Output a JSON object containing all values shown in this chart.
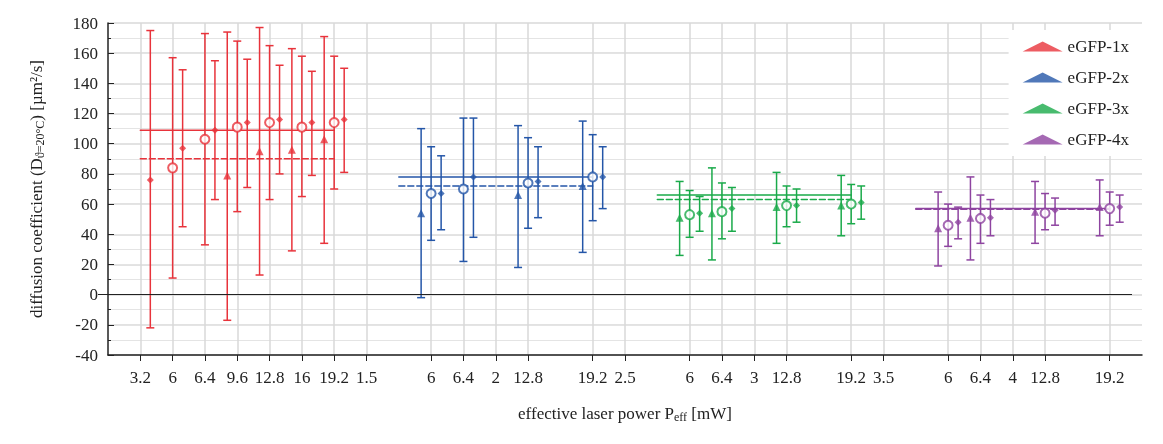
{
  "chart_data": {
    "type": "scatter",
    "xlabel": "effective laser power P$_{eff}$ [mW]",
    "ylabel": "diffusion coefficient (D$_{ϑ=20°C}$) [µm²/s]",
    "categories": [
      null,
      "3.2",
      "6",
      "6.4",
      "9.6",
      "12.8",
      "16",
      "19.2",
      "1.5",
      null,
      "6",
      "6.4",
      "2",
      "12.8",
      null,
      "19.2",
      "2.5",
      null,
      "6",
      "6.4",
      "3",
      "12.8",
      null,
      "19.2",
      "3.5",
      null,
      "6",
      "6.4",
      "4",
      "12.8",
      null,
      "19.2"
    ],
    "ylim": [
      -40,
      180
    ],
    "yticks": [
      -40,
      -20,
      0,
      20,
      40,
      60,
      80,
      100,
      120,
      140,
      160,
      180
    ],
    "grid": true,
    "legend": "top right",
    "ref_lines": [
      {
        "axis": "y",
        "value": 0,
        "color": "#222222"
      }
    ],
    "series": [
      {
        "name": "eGFP-1x",
        "color": "#e8333b",
        "marker": "triangle",
        "values": [
          null,
          null,
          null,
          null,
          79,
          95,
          96,
          103,
          null,
          null,
          null,
          null,
          null,
          null,
          null,
          null,
          null,
          null,
          null,
          null,
          null,
          null,
          null,
          null,
          null,
          null,
          null,
          null,
          null,
          null,
          null,
          null
        ],
        "errors": [
          null,
          null,
          null,
          null,
          [
            -17,
            174
          ],
          [
            13,
            177
          ],
          [
            29,
            163
          ],
          [
            34,
            171
          ],
          null,
          null,
          null,
          null,
          null,
          null,
          null,
          null,
          null,
          null,
          null,
          null,
          null,
          null,
          null,
          null,
          null,
          null,
          null,
          null,
          null,
          null,
          null,
          null
        ]
      },
      {
        "color": "#e8333b",
        "marker": "circle",
        "values": [
          null,
          null,
          84,
          103,
          111,
          114,
          111,
          114,
          null,
          null,
          null,
          null,
          null,
          null,
          null,
          null,
          null,
          null,
          null,
          null,
          null,
          null,
          null,
          null,
          null,
          null,
          null,
          null,
          null,
          null,
          null,
          null
        ],
        "errors": [
          null,
          null,
          [
            11,
            157
          ],
          [
            33,
            173
          ],
          [
            55,
            168
          ],
          [
            63,
            165
          ],
          [
            65,
            158
          ],
          [
            70,
            158
          ],
          null,
          null,
          null,
          null,
          null,
          null,
          null,
          null,
          null,
          null,
          null,
          null,
          null,
          null,
          null,
          null,
          null,
          null,
          null,
          null,
          null,
          null,
          null,
          null
        ]
      },
      {
        "color": "#e8333b",
        "marker": "diamond",
        "values": [
          null,
          76,
          97,
          109,
          114,
          116,
          114,
          116,
          null,
          null,
          null,
          null,
          null,
          null,
          null,
          null,
          null,
          null,
          null,
          null,
          null,
          null,
          null,
          null,
          null,
          null,
          null,
          null,
          null,
          null,
          null,
          null
        ],
        "errors": [
          null,
          [
            -22,
            175
          ],
          [
            45,
            149
          ],
          [
            63,
            155
          ],
          [
            71,
            156
          ],
          [
            80,
            152
          ],
          [
            79,
            148
          ],
          [
            81,
            150
          ],
          null,
          null,
          null,
          null,
          null,
          null,
          null,
          null,
          null,
          null,
          null,
          null,
          null,
          null,
          null,
          null,
          null,
          null,
          null,
          null,
          null,
          null,
          null,
          null
        ]
      },
      {
        "type": "line",
        "color": "#e8333b",
        "marker": "none",
        "line_style": "solid",
        "values": [
          null,
          109,
          109,
          109,
          109,
          109,
          109,
          109,
          null,
          null,
          null,
          null,
          null,
          null,
          null,
          null,
          null,
          null,
          null,
          null,
          null,
          null,
          null,
          null,
          null,
          null,
          null,
          null,
          null,
          null,
          null,
          null
        ]
      },
      {
        "type": "line",
        "color": "#e8333b",
        "marker": "none",
        "line_style": "dashed",
        "values": [
          null,
          90,
          90,
          90,
          90,
          90,
          90,
          90,
          null,
          null,
          null,
          null,
          null,
          null,
          null,
          null,
          null,
          null,
          null,
          null,
          null,
          null,
          null,
          null,
          null,
          null,
          null,
          null,
          null,
          null,
          null,
          null
        ]
      },
      {
        "name": "eGFP-2x",
        "color": "#2456a8",
        "marker": "triangle",
        "values": [
          null,
          null,
          null,
          null,
          null,
          null,
          null,
          null,
          null,
          null,
          54,
          null,
          null,
          66,
          null,
          72,
          null,
          null,
          null,
          null,
          null,
          null,
          null,
          null,
          null,
          null,
          null,
          null,
          null,
          null,
          null,
          null
        ],
        "errors": [
          null,
          null,
          null,
          null,
          null,
          null,
          null,
          null,
          null,
          null,
          [
            -2,
            110
          ],
          null,
          null,
          [
            18,
            112
          ],
          null,
          [
            28,
            115
          ],
          null,
          null,
          null,
          null,
          null,
          null,
          null,
          null,
          null,
          null,
          null,
          null,
          null,
          null,
          null,
          null
        ]
      },
      {
        "color": "#2456a8",
        "marker": "circle",
        "values": [
          null,
          null,
          null,
          null,
          null,
          null,
          null,
          null,
          null,
          null,
          67,
          70,
          null,
          74,
          null,
          78,
          null,
          null,
          null,
          null,
          null,
          null,
          null,
          null,
          null,
          null,
          null,
          null,
          null,
          null,
          null,
          null
        ],
        "errors": [
          null,
          null,
          null,
          null,
          null,
          null,
          null,
          null,
          null,
          null,
          [
            36,
            98
          ],
          [
            22,
            117
          ],
          null,
          [
            44,
            104
          ],
          null,
          [
            49,
            106
          ],
          null,
          null,
          null,
          null,
          null,
          null,
          null,
          null,
          null,
          null,
          null,
          null,
          null,
          null,
          null,
          null
        ]
      },
      {
        "color": "#2456a8",
        "marker": "diamond",
        "values": [
          null,
          null,
          null,
          null,
          null,
          null,
          null,
          null,
          null,
          null,
          67,
          78,
          null,
          75,
          null,
          78,
          null,
          null,
          null,
          null,
          null,
          null,
          null,
          null,
          null,
          null,
          null,
          null,
          null,
          null,
          null,
          null
        ],
        "errors": [
          null,
          null,
          null,
          null,
          null,
          null,
          null,
          null,
          null,
          null,
          [
            43,
            92
          ],
          [
            38,
            117
          ],
          null,
          [
            51,
            98
          ],
          null,
          [
            57,
            98
          ],
          null,
          null,
          null,
          null,
          null,
          null,
          null,
          null,
          null,
          null,
          null,
          null,
          null,
          null,
          null,
          null
        ]
      },
      {
        "type": "line",
        "color": "#2456a8",
        "marker": "none",
        "line_style": "solid",
        "values": [
          null,
          null,
          null,
          null,
          null,
          null,
          null,
          null,
          null,
          78,
          78,
          78,
          78,
          78,
          78,
          78,
          null,
          null,
          null,
          null,
          null,
          null,
          null,
          null,
          null,
          null,
          null,
          null,
          null,
          null,
          null,
          null
        ]
      },
      {
        "type": "line",
        "color": "#2456a8",
        "marker": "none",
        "line_style": "dashed",
        "values": [
          null,
          null,
          null,
          null,
          null,
          null,
          null,
          null,
          null,
          72,
          72,
          72,
          72,
          72,
          72,
          72,
          null,
          null,
          null,
          null,
          null,
          null,
          null,
          null,
          null,
          null,
          null,
          null,
          null,
          null,
          null,
          null
        ]
      },
      {
        "name": "eGFP-3x",
        "color": "#1aaa4a",
        "marker": "triangle",
        "values": [
          null,
          null,
          null,
          null,
          null,
          null,
          null,
          null,
          null,
          null,
          null,
          null,
          null,
          null,
          null,
          null,
          null,
          null,
          51,
          54,
          null,
          58,
          null,
          59,
          null,
          null,
          null,
          null,
          null,
          null,
          null,
          null
        ],
        "errors": [
          null,
          null,
          null,
          null,
          null,
          null,
          null,
          null,
          null,
          null,
          null,
          null,
          null,
          null,
          null,
          null,
          null,
          null,
          [
            26,
            75
          ],
          [
            23,
            84
          ],
          null,
          [
            34,
            81
          ],
          null,
          [
            39,
            79
          ],
          null,
          null,
          null,
          null,
          null,
          null,
          null,
          null
        ]
      },
      {
        "color": "#1aaa4a",
        "marker": "circle",
        "values": [
          null,
          null,
          null,
          null,
          null,
          null,
          null,
          null,
          null,
          null,
          null,
          null,
          null,
          null,
          null,
          null,
          null,
          null,
          53,
          55,
          null,
          59,
          null,
          60,
          null,
          null,
          null,
          null,
          null,
          null,
          null,
          null
        ],
        "errors": [
          null,
          null,
          null,
          null,
          null,
          null,
          null,
          null,
          null,
          null,
          null,
          null,
          null,
          null,
          null,
          null,
          null,
          null,
          [
            38,
            69
          ],
          [
            37,
            74
          ],
          null,
          [
            45,
            72
          ],
          null,
          [
            47,
            73
          ],
          null,
          null,
          null,
          null,
          null,
          null,
          null,
          null
        ]
      },
      {
        "color": "#1aaa4a",
        "marker": "diamond",
        "values": [
          null,
          null,
          null,
          null,
          null,
          null,
          null,
          null,
          null,
          null,
          null,
          null,
          null,
          null,
          null,
          null,
          null,
          null,
          54,
          57,
          null,
          59,
          null,
          61,
          null,
          null,
          null,
          null,
          null,
          null,
          null,
          null
        ],
        "errors": [
          null,
          null,
          null,
          null,
          null,
          null,
          null,
          null,
          null,
          null,
          null,
          null,
          null,
          null,
          null,
          null,
          null,
          null,
          [
            42,
            65
          ],
          [
            42,
            71
          ],
          null,
          [
            48,
            70
          ],
          null,
          [
            50,
            72
          ],
          null,
          null,
          null,
          null,
          null,
          null,
          null,
          null
        ]
      },
      {
        "type": "line",
        "color": "#1aaa4a",
        "marker": "none",
        "line_style": "solid",
        "values": [
          null,
          null,
          null,
          null,
          null,
          null,
          null,
          null,
          null,
          null,
          null,
          null,
          null,
          null,
          null,
          null,
          null,
          66,
          66,
          66,
          66,
          66,
          66,
          66,
          null,
          null,
          null,
          null,
          null,
          null,
          null,
          null
        ]
      },
      {
        "type": "line",
        "color": "#1aaa4a",
        "marker": "none",
        "line_style": "dashed",
        "values": [
          null,
          null,
          null,
          null,
          null,
          null,
          null,
          null,
          null,
          null,
          null,
          null,
          null,
          null,
          null,
          null,
          null,
          63,
          63,
          63,
          63,
          63,
          63,
          63,
          null,
          null,
          null,
          null,
          null,
          null,
          null,
          null
        ]
      },
      {
        "name": "eGFP-4x",
        "color": "#8e44a0",
        "marker": "triangle",
        "values": [
          null,
          null,
          null,
          null,
          null,
          null,
          null,
          null,
          null,
          null,
          null,
          null,
          null,
          null,
          null,
          null,
          null,
          null,
          null,
          null,
          null,
          null,
          null,
          null,
          null,
          null,
          44,
          51,
          null,
          55,
          null,
          58
        ],
        "errors": [
          null,
          null,
          null,
          null,
          null,
          null,
          null,
          null,
          null,
          null,
          null,
          null,
          null,
          null,
          null,
          null,
          null,
          null,
          null,
          null,
          null,
          null,
          null,
          null,
          null,
          null,
          [
            19,
            68
          ],
          [
            23,
            78
          ],
          null,
          [
            34,
            75
          ],
          null,
          [
            39,
            76
          ]
        ]
      },
      {
        "color": "#8e44a0",
        "marker": "circle",
        "values": [
          null,
          null,
          null,
          null,
          null,
          null,
          null,
          null,
          null,
          null,
          null,
          null,
          null,
          null,
          null,
          null,
          null,
          null,
          null,
          null,
          null,
          null,
          null,
          null,
          null,
          null,
          46,
          50.5,
          null,
          54,
          null,
          57
        ],
        "errors": [
          null,
          null,
          null,
          null,
          null,
          null,
          null,
          null,
          null,
          null,
          null,
          null,
          null,
          null,
          null,
          null,
          null,
          null,
          null,
          null,
          null,
          null,
          null,
          null,
          null,
          null,
          [
            32,
            60
          ],
          [
            34,
            66
          ],
          null,
          [
            43,
            67
          ],
          null,
          [
            46,
            68
          ]
        ]
      },
      {
        "color": "#8e44a0",
        "marker": "diamond",
        "values": [
          null,
          null,
          null,
          null,
          null,
          null,
          null,
          null,
          null,
          null,
          null,
          null,
          null,
          null,
          null,
          null,
          null,
          null,
          null,
          null,
          null,
          null,
          null,
          null,
          null,
          null,
          48,
          51,
          null,
          56,
          null,
          58
        ],
        "errors": [
          null,
          null,
          null,
          null,
          null,
          null,
          null,
          null,
          null,
          null,
          null,
          null,
          null,
          null,
          null,
          null,
          null,
          null,
          null,
          null,
          null,
          null,
          null,
          null,
          null,
          null,
          [
            37,
            58
          ],
          [
            39,
            63
          ],
          null,
          [
            46,
            64
          ],
          null,
          [
            48,
            66
          ]
        ]
      },
      {
        "type": "line",
        "color": "#8e44a0",
        "marker": "none",
        "line_style": "solid",
        "values": [
          null,
          null,
          null,
          null,
          null,
          null,
          null,
          null,
          null,
          null,
          null,
          null,
          null,
          null,
          null,
          null,
          null,
          null,
          null,
          null,
          null,
          null,
          null,
          null,
          null,
          57,
          57,
          57,
          57,
          57,
          57,
          57
        ]
      },
      {
        "type": "line",
        "color": "#8e44a0",
        "marker": "none",
        "line_style": "dashed",
        "values": [
          null,
          null,
          null,
          null,
          null,
          null,
          null,
          null,
          null,
          null,
          null,
          null,
          null,
          null,
          null,
          null,
          null,
          null,
          null,
          null,
          null,
          null,
          null,
          null,
          null,
          56.5,
          56.5,
          56.5,
          56.5,
          56.5,
          56.5,
          56.5
        ]
      }
    ]
  }
}
